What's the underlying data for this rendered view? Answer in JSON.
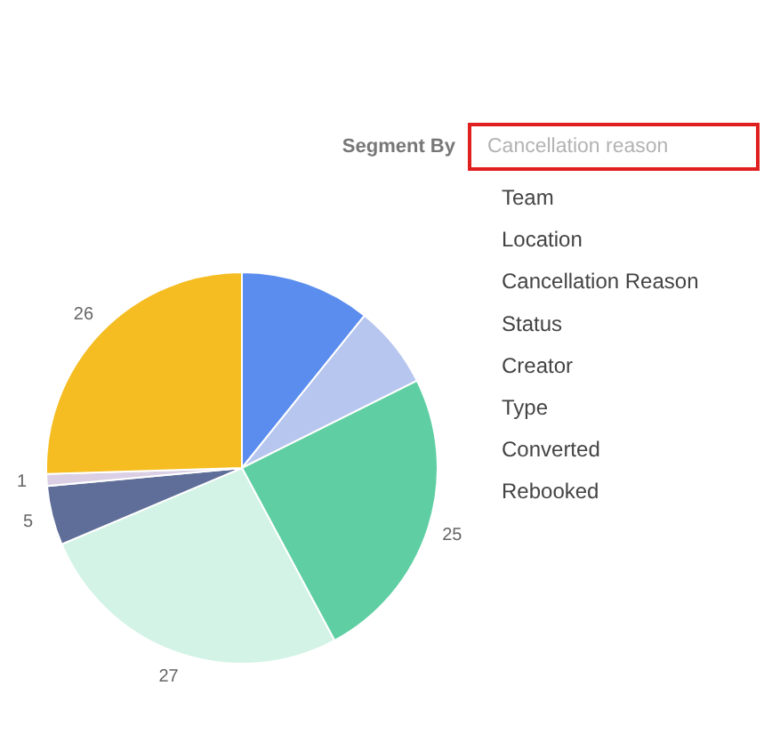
{
  "chart_data": {
    "type": "pie",
    "categories": [
      null,
      null,
      null,
      null,
      null,
      null,
      null
    ],
    "values": [
      11,
      7,
      25,
      27,
      5,
      1,
      26
    ],
    "colors": [
      "#5b8def",
      "#b7c6ef",
      "#5fcfa3",
      "#d2f3e6",
      "#5e6e98",
      "#dacfe5",
      "#f5bd22"
    ],
    "value_labels": [
      null,
      null,
      "25",
      "27",
      "5",
      "1",
      "26"
    ],
    "annotations": [
      "Segment By",
      "Cancellation reason",
      "Team",
      "Location",
      "Cancellation Reason",
      "Status",
      "Creator",
      "Type",
      "Converted",
      "Rebooked"
    ]
  }
}
